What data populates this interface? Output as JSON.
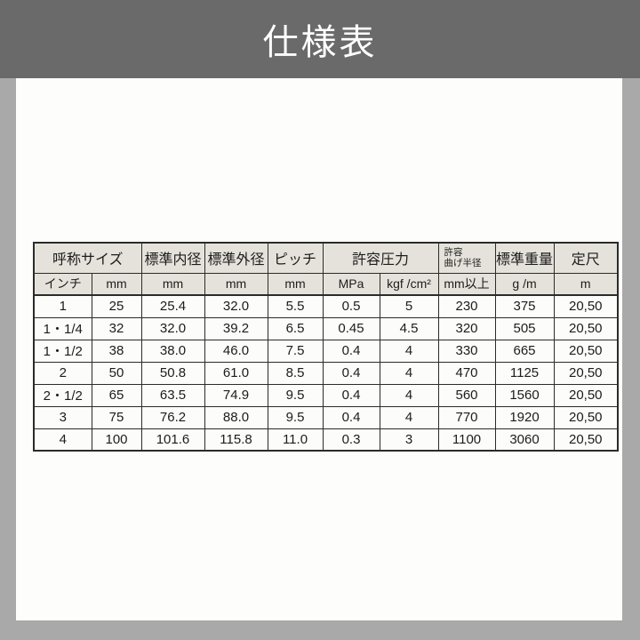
{
  "header": {
    "title": "仕様表"
  },
  "table": {
    "group_headers": [
      {
        "label": "呼称サイズ"
      },
      {
        "label": "標準内径"
      },
      {
        "label": "標準外径"
      },
      {
        "label": "ピッチ"
      },
      {
        "label": "許容圧力"
      },
      {
        "label_line1": "許容",
        "label_line2": "曲げ半径"
      },
      {
        "label": "標準重量"
      },
      {
        "label": "定尺"
      }
    ],
    "units": [
      "インチ",
      "mm",
      "mm",
      "mm",
      "mm",
      "MPa",
      "kgf /cm²",
      "mm以上",
      "g /m",
      "m"
    ],
    "rows": [
      [
        "1",
        "25",
        "25.4",
        "32.0",
        "5.5",
        "0.5",
        "5",
        "230",
        "375",
        "20,50"
      ],
      [
        "1・1/4",
        "32",
        "32.0",
        "39.2",
        "6.5",
        "0.45",
        "4.5",
        "320",
        "505",
        "20,50"
      ],
      [
        "1・1/2",
        "38",
        "38.0",
        "46.0",
        "7.5",
        "0.4",
        "4",
        "330",
        "665",
        "20,50"
      ],
      [
        "2",
        "50",
        "50.8",
        "61.0",
        "8.5",
        "0.4",
        "4",
        "470",
        "1125",
        "20,50"
      ],
      [
        "2・1/2",
        "65",
        "63.5",
        "74.9",
        "9.5",
        "0.4",
        "4",
        "560",
        "1560",
        "20,50"
      ],
      [
        "3",
        "75",
        "76.2",
        "88.0",
        "9.5",
        "0.4",
        "4",
        "770",
        "1920",
        "20,50"
      ],
      [
        "4",
        "100",
        "101.6",
        "115.8",
        "11.0",
        "0.3",
        "3",
        "1100",
        "3060",
        "20,50"
      ]
    ]
  },
  "colors": {
    "title_bar_bg": "#6a6a6a",
    "title_text": "#ffffff",
    "page_bg": "#a9a9a9",
    "card_bg": "#fdfdfc",
    "table_header_bg": "#e5e2db",
    "table_cell_bg": "#fcfcfa",
    "table_border": "#2b2b2b",
    "table_text": "#1c1c1c"
  }
}
